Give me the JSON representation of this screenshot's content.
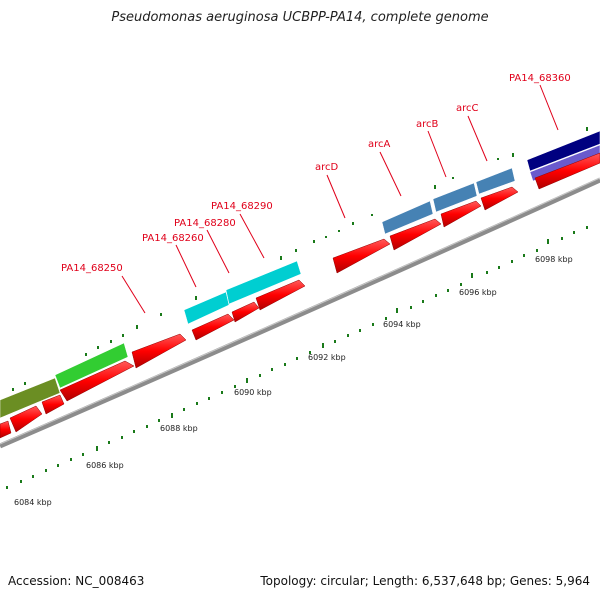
{
  "title": "Pseudomonas aeruginosa UCBPP-PA14, complete genome",
  "footer": {
    "accession": "Accession: NC_008463",
    "summary": "Topology: circular; Length: 6,537,648 bp; Genes: 5,964"
  },
  "colors": {
    "cds": "#ff1010",
    "backbone": "#8c8c8c",
    "tick": "#1a7a1a",
    "label": "#e0001a"
  },
  "scale_labels": [
    "6084 kbp",
    "6086 kbp",
    "6088 kbp",
    "6090 kbp",
    "6092 kbp",
    "6094 kbp",
    "6096 kbp",
    "6098 kbp"
  ],
  "gene_labels": [
    "PA14_68250",
    "PA14_68260",
    "PA14_68280",
    "PA14_68290",
    "arcD",
    "arcA",
    "arcB",
    "arcC",
    "PA14_68360"
  ],
  "cog_colors": [
    "#6b8e23",
    "#32cd32",
    "#00ced1",
    "#00ced1",
    "#4682b4",
    "#4682b4",
    "#4682b4",
    "#000080",
    "#6a5acd"
  ]
}
